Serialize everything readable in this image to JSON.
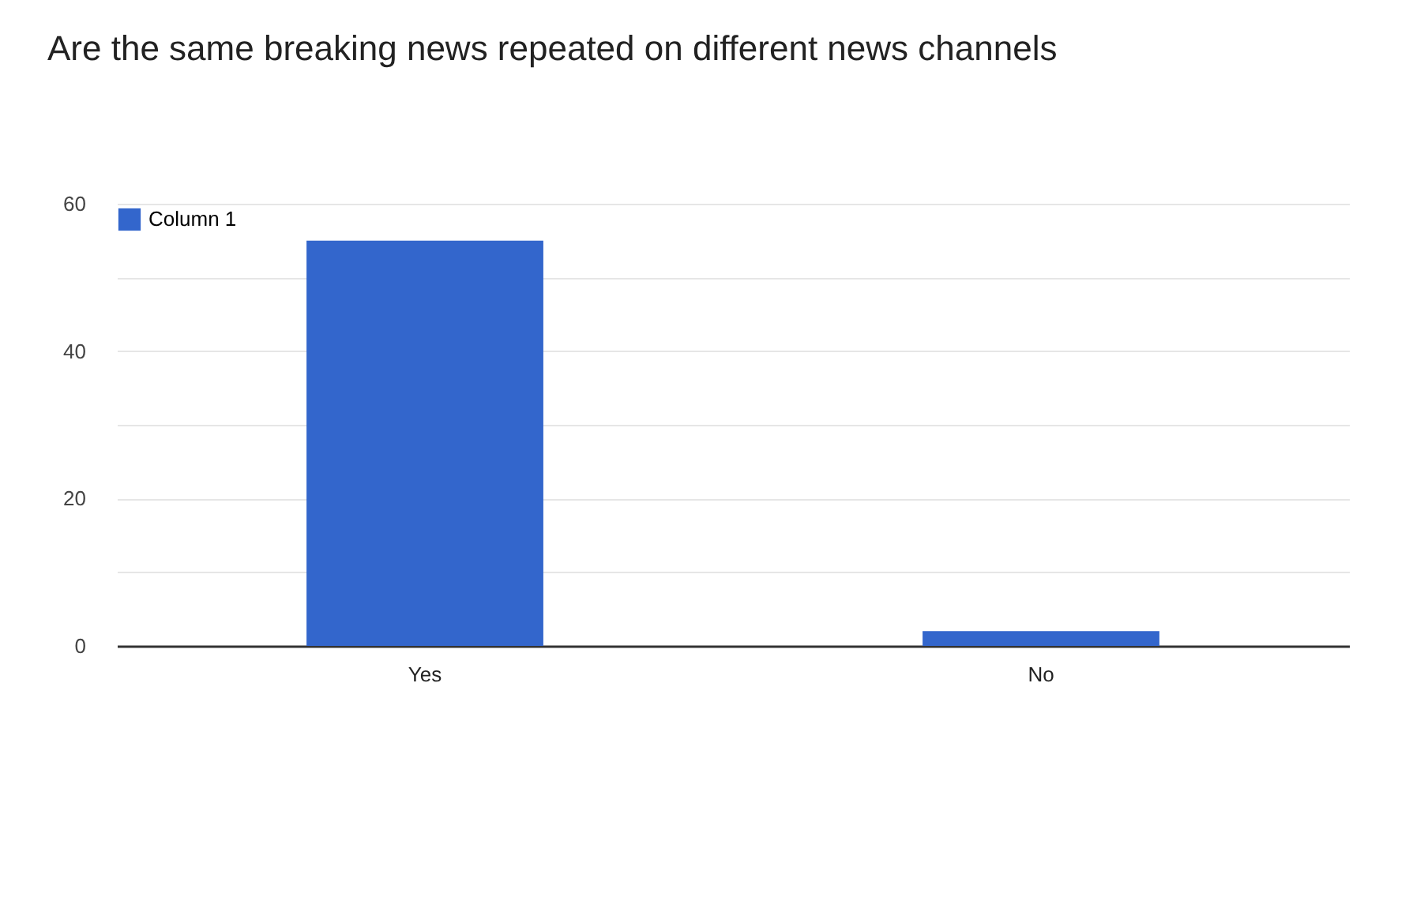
{
  "chart_data": {
    "type": "bar",
    "title": "Are the same breaking news repeated on different news channels",
    "categories": [
      "Yes",
      "No"
    ],
    "series": [
      {
        "name": "Column 1",
        "color": "#3366cc",
        "values": [
          55,
          2
        ]
      }
    ],
    "ylim": [
      0,
      60
    ],
    "yticks": [
      0,
      {
        "value": 10,
        "label": null
      },
      20,
      {
        "value": 30,
        "label": null
      },
      40,
      {
        "value": 50,
        "label": null
      },
      60
    ],
    "grid": "y",
    "legend": "top left"
  }
}
